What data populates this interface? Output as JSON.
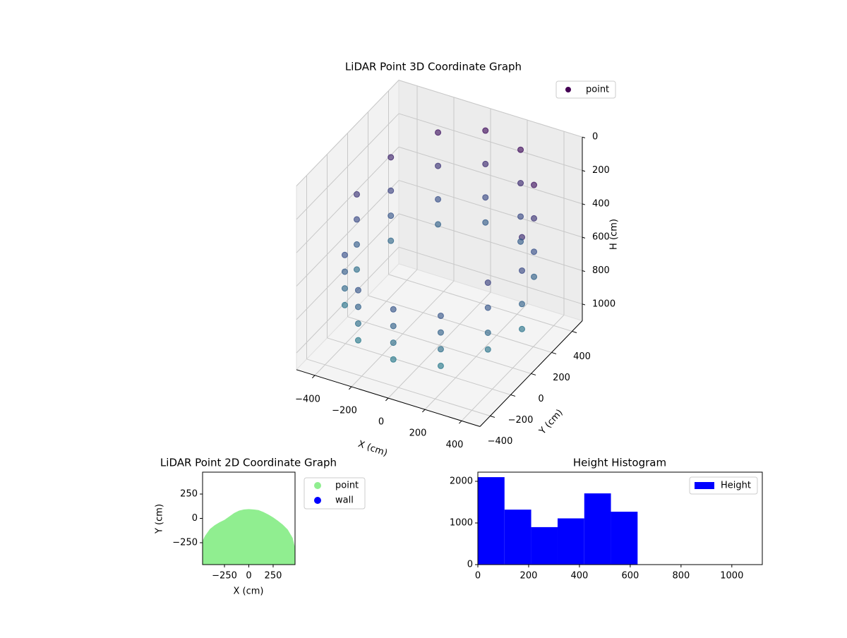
{
  "chart_data": [
    {
      "type": "scatter3d",
      "title": "LiDAR Point 3D Coordinate Graph",
      "xlabel": "X (cm)",
      "ylabel": "Y (cm)",
      "zlabel": "H (cm)",
      "xlim": [
        -500,
        500
      ],
      "ylim": [
        -500,
        500
      ],
      "zlim": [
        0,
        1100
      ],
      "z_inverted": true,
      "xticks": [
        {
          "value": -400,
          "label": "−400"
        },
        {
          "value": -200,
          "label": "−200"
        },
        0,
        200,
        400
      ],
      "yticks": [
        {
          "value": -400,
          "label": "−400"
        },
        {
          "value": -200,
          "label": "−200"
        },
        0,
        200,
        400
      ],
      "zticks": [
        0,
        200,
        400,
        600,
        800,
        1000
      ],
      "colormap": [
        "#440154",
        "#3b528b",
        "#21918c"
      ],
      "grid": true,
      "legend": "upper right",
      "series": [
        {
          "name": "point",
          "color": "#440154",
          "x": [
            450,
            450,
            450,
            450,
            390,
            390,
            390,
            390,
            225,
            225,
            225,
            225,
            0,
            0,
            0,
            0,
            -225,
            -225,
            -225,
            -225,
            -390,
            -390,
            -390,
            -390,
            -450,
            -450,
            -450,
            -450,
            -390,
            -390,
            -390,
            -390,
            -225,
            -225,
            -225,
            -225,
            0,
            0,
            0,
            0,
            225,
            225,
            225,
            225,
            390,
            390,
            390,
            390
          ],
          "y": [
            0,
            0,
            0,
            0,
            225,
            225,
            225,
            225,
            390,
            390,
            390,
            390,
            450,
            450,
            450,
            450,
            390,
            390,
            390,
            390,
            225,
            225,
            225,
            225,
            0,
            0,
            0,
            0,
            -225,
            -225,
            -225,
            -225,
            -390,
            -390,
            -390,
            -390,
            -450,
            -450,
            -450,
            -450,
            -390,
            -390,
            -390,
            -390,
            -225,
            -225,
            -225,
            -225
          ],
          "z": [
            300,
            500,
            700,
            850,
            150,
            350,
            550,
            700,
            100,
            300,
            500,
            650,
            100,
            300,
            500,
            650,
            150,
            350,
            550,
            700,
            250,
            450,
            600,
            750,
            350,
            500,
            650,
            800,
            550,
            650,
            750,
            850,
            600,
            700,
            800,
            900,
            600,
            700,
            800,
            900,
            600,
            700,
            800,
            900,
            450,
            600,
            750,
            850
          ]
        }
      ]
    },
    {
      "type": "scatter",
      "title": "LiDAR Point 2D Coordinate Graph",
      "xlabel": "X (cm)",
      "ylabel": "Y (cm)",
      "xlim": [
        -475,
        475
      ],
      "ylim": [
        -475,
        475
      ],
      "xticks": [
        {
          "value": -250,
          "label": "−250"
        },
        0,
        250
      ],
      "yticks": [
        {
          "value": -250,
          "label": "−250"
        },
        0,
        250
      ],
      "legend": "outside upper right",
      "series": [
        {
          "name": "point",
          "color": "#90ee90",
          "x": [
            -475,
            -450,
            -400,
            -350,
            -300,
            -250,
            -200,
            -150,
            -100,
            -50,
            0,
            50,
            100,
            150,
            200,
            250,
            300,
            350,
            400,
            450,
            475
          ],
          "y": [
            -230,
            -180,
            -110,
            -70,
            -40,
            -15,
            20,
            55,
            80,
            92,
            95,
            92,
            85,
            65,
            40,
            10,
            -25,
            -65,
            -115,
            -200,
            -300
          ]
        },
        {
          "name": "wall",
          "color": "#0000ff",
          "x": [],
          "y": []
        }
      ]
    },
    {
      "type": "histogram",
      "title": "Height Histogram",
      "xlim": [
        0,
        1120
      ],
      "ylim": [
        0,
        2220
      ],
      "xticks": [
        0,
        200,
        400,
        600,
        800,
        1000
      ],
      "yticks": [
        0,
        1000,
        2000
      ],
      "legend": "upper right",
      "series": [
        {
          "name": "Height",
          "color": "#0000ff",
          "bins": [
            0,
            105,
            210,
            314,
            419,
            524,
            629
          ],
          "values": [
            2100,
            1320,
            900,
            1110,
            1710,
            1270
          ]
        }
      ]
    }
  ]
}
